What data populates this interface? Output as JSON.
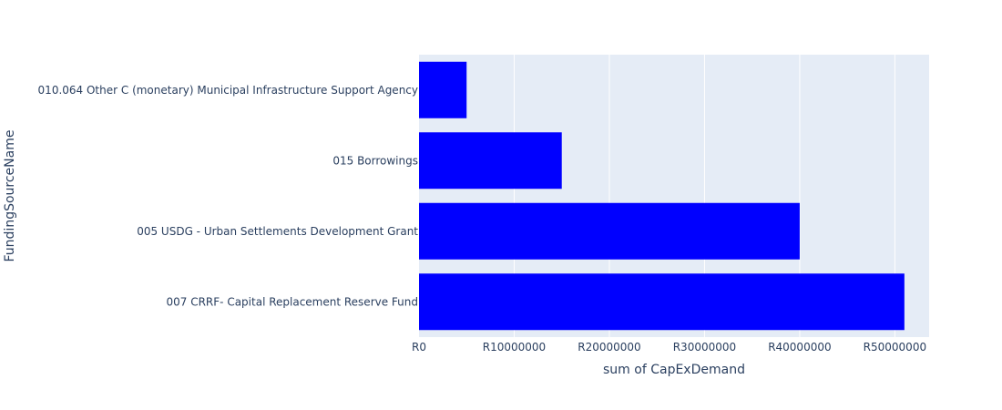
{
  "chart_data": {
    "type": "bar",
    "orientation": "horizontal",
    "categories": [
      "010.064 Other C (monetary) Municipal Infrastructure Support Agency",
      "015 Borrowings",
      "005 USDG - Urban Settlements Development Grant",
      "007 CRRF- Capital Replacement Reserve Fund"
    ],
    "values": [
      5000000,
      15000000,
      40000000,
      51000000
    ],
    "xlabel": "sum of CapExDemand",
    "ylabel": "FundingSourceName",
    "xlim": [
      0,
      53600000
    ],
    "xticks": [
      0,
      10000000,
      20000000,
      30000000,
      40000000,
      50000000
    ],
    "xtick_labels": [
      "R0",
      "R10000000",
      "R20000000",
      "R30000000",
      "R40000000",
      "R50000000"
    ],
    "grid": true,
    "bar_color": "#0000ff",
    "plot_background": "#e5ecf6",
    "grid_color": "#ffffff",
    "text_color": "#2a3f5f"
  }
}
